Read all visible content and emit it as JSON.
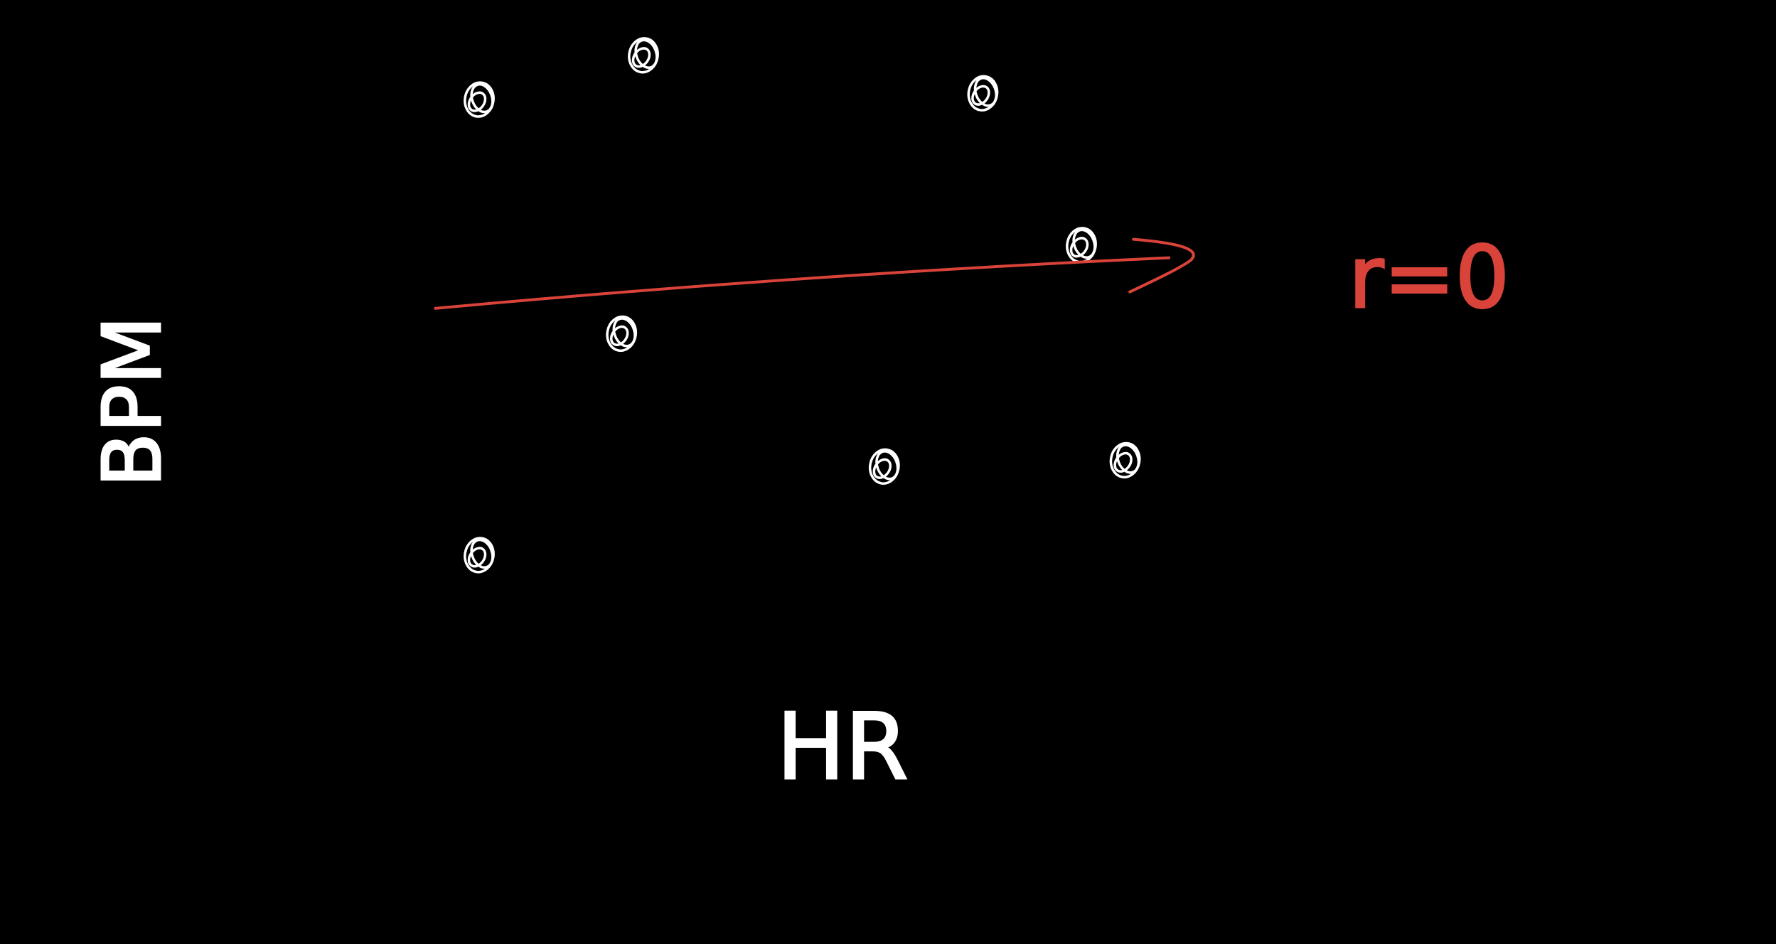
{
  "colors": {
    "background": "#000000",
    "ink": "#ffffff",
    "annotation": "#d9433a"
  },
  "chart_data": {
    "type": "scatter",
    "xlabel": "HR",
    "ylabel": "BPM",
    "xlim": [
      0,
      10
    ],
    "ylim": [
      0,
      10
    ],
    "grid": false,
    "x_tick_labels": [],
    "y_tick_labels": [],
    "points": [
      {
        "x": 1.0,
        "y": 9.1
      },
      {
        "x": 2.5,
        "y": 9.8
      },
      {
        "x": 5.6,
        "y": 9.2
      },
      {
        "x": 6.5,
        "y": 6.8
      },
      {
        "x": 2.3,
        "y": 5.4
      },
      {
        "x": 4.7,
        "y": 3.3
      },
      {
        "x": 6.9,
        "y": 3.4
      },
      {
        "x": 1.0,
        "y": 1.9
      }
    ],
    "trend_line": {
      "from": {
        "x": 0.6,
        "y": 5.8
      },
      "to": {
        "x": 7.3,
        "y": 6.6
      },
      "arrow": true
    },
    "annotations": [
      {
        "text": "r=0"
      }
    ]
  }
}
